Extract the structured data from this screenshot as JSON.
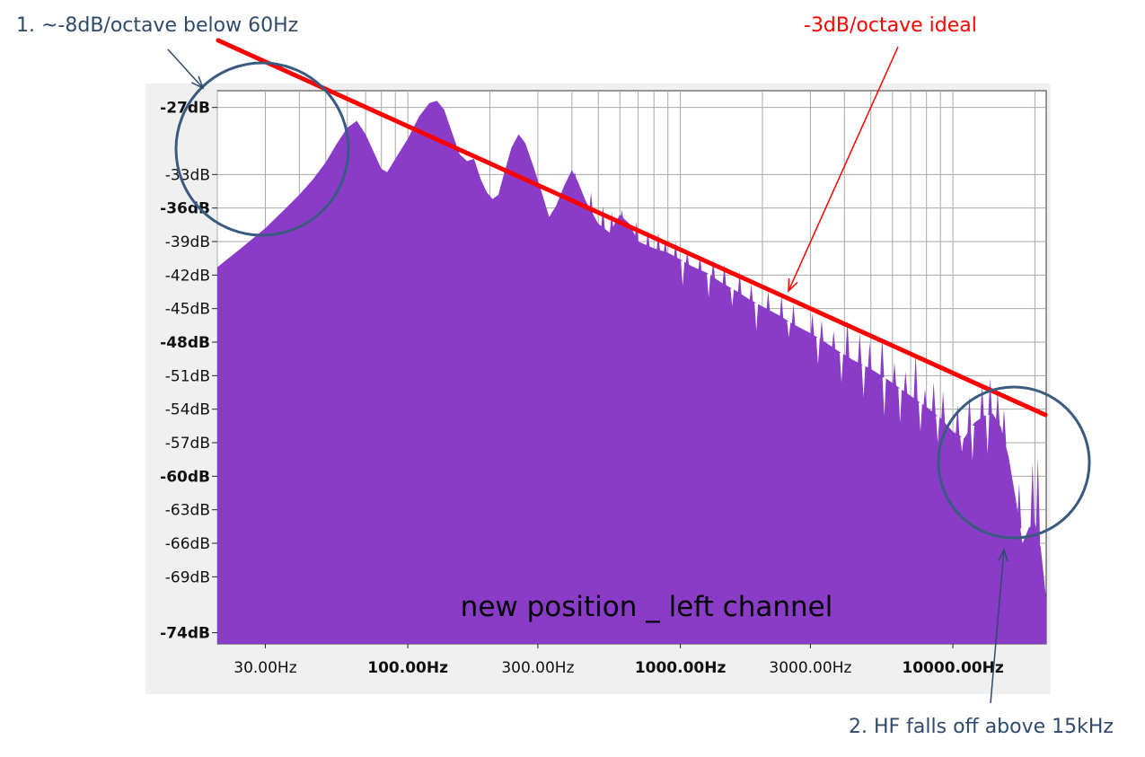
{
  "chart_data": {
    "type": "area",
    "title": "new position _ left channel",
    "x_scale": "log",
    "xlim": [
      20,
      22000
    ],
    "ylim": [
      -75,
      -25.5
    ],
    "y_ticks": [
      {
        "value": -27,
        "label": "-27dB",
        "major": true
      },
      {
        "value": -33,
        "label": "-33dB",
        "major": false
      },
      {
        "value": -36,
        "label": "-36dB",
        "major": true
      },
      {
        "value": -39,
        "label": "-39dB",
        "major": false
      },
      {
        "value": -42,
        "label": "-42dB",
        "major": false
      },
      {
        "value": -45,
        "label": "-45dB",
        "major": false
      },
      {
        "value": -48,
        "label": "-48dB",
        "major": true
      },
      {
        "value": -51,
        "label": "-51dB",
        "major": false
      },
      {
        "value": -54,
        "label": "-54dB",
        "major": false
      },
      {
        "value": -57,
        "label": "-57dB",
        "major": false
      },
      {
        "value": -60,
        "label": "-60dB",
        "major": true
      },
      {
        "value": -63,
        "label": "-63dB",
        "major": false
      },
      {
        "value": -66,
        "label": "-66dB",
        "major": false
      },
      {
        "value": -69,
        "label": "-69dB",
        "major": false
      },
      {
        "value": -74,
        "label": "-74dB",
        "major": true
      }
    ],
    "x_ticks": [
      {
        "value": 30,
        "label": "30.00Hz",
        "major": false
      },
      {
        "value": 100,
        "label": "100.00Hz",
        "major": true
      },
      {
        "value": 300,
        "label": "300.00Hz",
        "major": false
      },
      {
        "value": 1000,
        "label": "1000.00Hz",
        "major": true
      },
      {
        "value": 3000,
        "label": "3000.00Hz",
        "major": false
      },
      {
        "value": 10000,
        "label": "10000.00Hz",
        "major": true
      }
    ],
    "grid": true,
    "fill_color": "#8a3cc8",
    "spectrum": [
      [
        20,
        -41.3
      ],
      [
        25,
        -39.4
      ],
      [
        30,
        -37.8
      ],
      [
        35,
        -36.2
      ],
      [
        40,
        -34.8
      ],
      [
        45,
        -33.4
      ],
      [
        50,
        -31.9
      ],
      [
        55,
        -30.2
      ],
      [
        60,
        -28.8
      ],
      [
        65,
        -28.2
      ],
      [
        70,
        -29.4
      ],
      [
        75,
        -31.0
      ],
      [
        80,
        -32.5
      ],
      [
        84,
        -32.8
      ],
      [
        90,
        -31.6
      ],
      [
        100,
        -29.8
      ],
      [
        110,
        -27.8
      ],
      [
        120,
        -26.6
      ],
      [
        128,
        -26.4
      ],
      [
        136,
        -27.2
      ],
      [
        145,
        -29.2
      ],
      [
        155,
        -31.2
      ],
      [
        165,
        -31.8
      ],
      [
        175,
        -31.6
      ],
      [
        185,
        -33.4
      ],
      [
        195,
        -34.6
      ],
      [
        205,
        -35.2
      ],
      [
        215,
        -34.8
      ],
      [
        225,
        -33.0
      ],
      [
        240,
        -30.6
      ],
      [
        255,
        -29.4
      ],
      [
        270,
        -30.2
      ],
      [
        290,
        -32.4
      ],
      [
        310,
        -34.6
      ],
      [
        330,
        -36.8
      ],
      [
        350,
        -35.8
      ],
      [
        375,
        -34.0
      ],
      [
        400,
        -32.6
      ],
      [
        420,
        -33.6
      ],
      [
        450,
        -35.4
      ],
      [
        500,
        -37.4
      ],
      [
        550,
        -38.2
      ],
      [
        600,
        -36.6
      ],
      [
        650,
        -37.4
      ],
      [
        700,
        -39.0
      ],
      [
        800,
        -39.6
      ],
      [
        900,
        -40.0
      ],
      [
        1000,
        -40.6
      ],
      [
        1100,
        -41.2
      ],
      [
        1250,
        -41.8
      ],
      [
        1400,
        -42.6
      ],
      [
        1600,
        -43.4
      ],
      [
        1800,
        -44.2
      ],
      [
        2000,
        -44.8
      ],
      [
        2300,
        -45.6
      ],
      [
        2600,
        -46.4
      ],
      [
        3000,
        -47.2
      ],
      [
        3400,
        -48.0
      ],
      [
        3800,
        -48.8
      ],
      [
        4300,
        -49.6
      ],
      [
        5000,
        -50.4
      ],
      [
        5800,
        -51.4
      ],
      [
        6800,
        -52.6
      ],
      [
        8000,
        -53.8
      ],
      [
        9000,
        -54.8
      ],
      [
        10000,
        -56.0
      ],
      [
        11000,
        -56.6
      ],
      [
        12000,
        -55.2
      ],
      [
        13000,
        -54.6
      ],
      [
        14000,
        -54.4
      ],
      [
        15000,
        -55.6
      ],
      [
        16000,
        -58.2
      ],
      [
        17000,
        -62.0
      ],
      [
        18000,
        -66.0
      ],
      [
        19000,
        -64.6
      ],
      [
        20000,
        -64.2
      ],
      [
        21000,
        -66.4
      ],
      [
        22000,
        -71.0
      ]
    ],
    "spikes": [
      [
        410,
        -32.8
      ],
      [
        470,
        -34.6
      ],
      [
        520,
        -35.8
      ],
      [
        560,
        -36.4
      ],
      [
        610,
        -36.2
      ],
      [
        690,
        -37.2
      ],
      [
        760,
        -38.0
      ],
      [
        830,
        -38.2
      ],
      [
        880,
        -38.8
      ],
      [
        960,
        -39.0
      ],
      [
        1060,
        -39.8
      ],
      [
        1180,
        -40.2
      ],
      [
        1320,
        -40.6
      ],
      [
        1450,
        -41.0
      ],
      [
        1650,
        -41.6
      ],
      [
        1820,
        -42.8
      ],
      [
        2100,
        -43.4
      ],
      [
        2350,
        -43.8
      ],
      [
        2600,
        -44.6
      ],
      [
        3050,
        -45.4
      ],
      [
        3300,
        -46.0
      ],
      [
        3650,
        -47.0
      ],
      [
        4100,
        -46.0
      ],
      [
        4550,
        -47.2
      ],
      [
        4950,
        -48.0
      ],
      [
        5500,
        -47.6
      ],
      [
        6100,
        -49.8
      ],
      [
        6700,
        -50.6
      ],
      [
        7300,
        -49.0
      ],
      [
        7900,
        -52.2
      ],
      [
        8500,
        -51.6
      ],
      [
        9200,
        -52.4
      ],
      [
        10400,
        -53.6
      ],
      [
        11500,
        -52.8
      ],
      [
        12800,
        -51.8
      ],
      [
        13700,
        -51.2
      ],
      [
        14600,
        -52.4
      ],
      [
        15400,
        -54.0
      ],
      [
        17500,
        -60.6
      ],
      [
        19600,
        -58.8
      ],
      [
        20500,
        -58.2
      ]
    ],
    "valleys": [
      [
        1020,
        -43.0
      ],
      [
        1270,
        -44.0
      ],
      [
        1550,
        -44.8
      ],
      [
        1900,
        -47.0
      ],
      [
        2500,
        -47.6
      ],
      [
        3200,
        -50.0
      ],
      [
        3900,
        -51.6
      ],
      [
        4700,
        -53.0
      ],
      [
        5600,
        -54.6
      ],
      [
        6400,
        -55.2
      ],
      [
        7600,
        -56.0
      ],
      [
        8800,
        -57.0
      ],
      [
        10800,
        -57.8
      ],
      [
        11800,
        -58.6
      ],
      [
        13400,
        -58.0
      ]
    ]
  },
  "annotations": {
    "note1": {
      "text": "1. ~-8dB/octave below 60Hz",
      "color": "#2f4a6b"
    },
    "note2": {
      "text": "-3dB/octave ideal",
      "color": "#ff0000"
    },
    "note3": {
      "text": "2. HF falls off above 15kHz",
      "color": "#2f4a6b"
    },
    "circle_color": "#3a5b80",
    "line_color": "#ff0000"
  }
}
